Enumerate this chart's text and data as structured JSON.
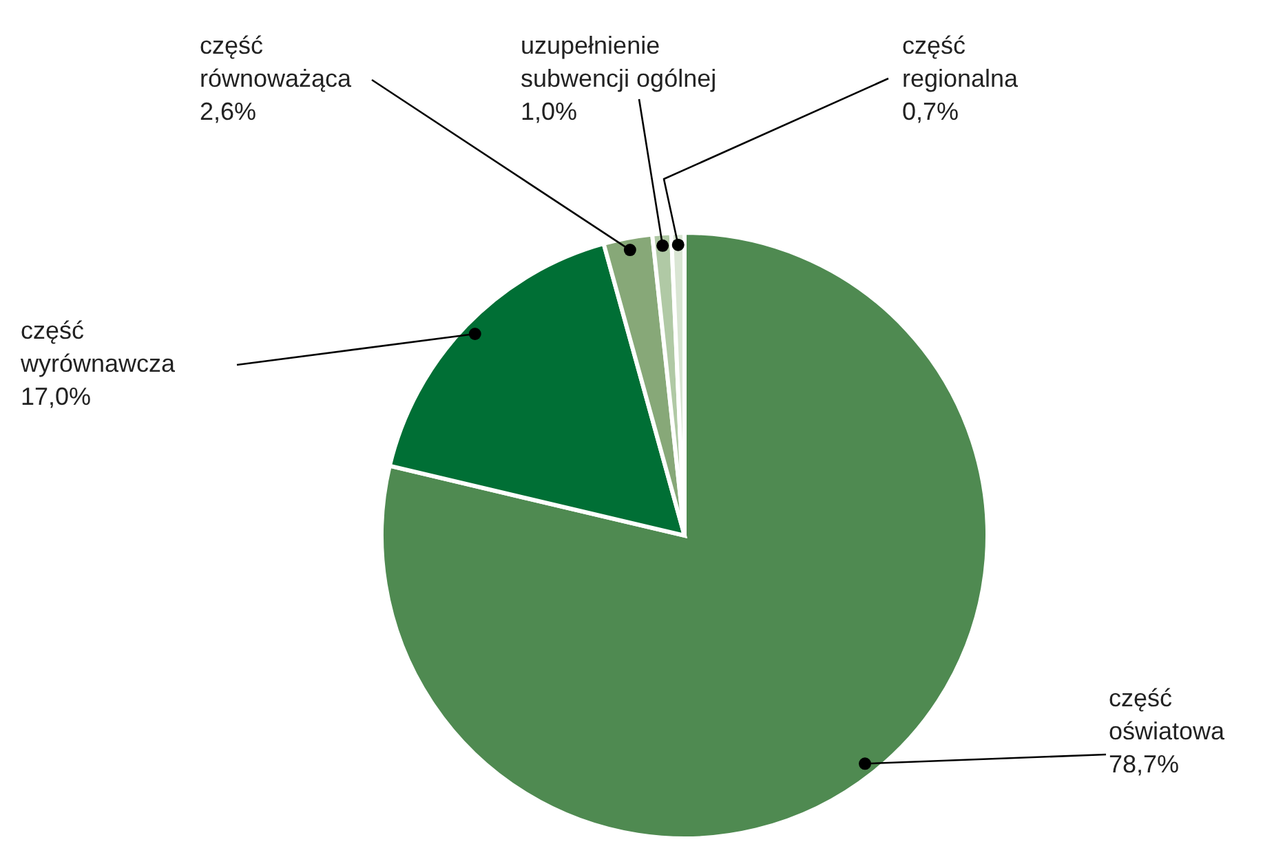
{
  "chart_data": {
    "type": "pie",
    "categories": [
      "część oświatowa",
      "część wyrównawcza",
      "część równoważąca",
      "uzupełnienie subwencji ogólnej",
      "część regionalna"
    ],
    "values": [
      78.7,
      17.0,
      2.6,
      1.0,
      0.7
    ],
    "value_labels": [
      "78,7%",
      "17,0%",
      "2,6%",
      "1,0%",
      "0,7%"
    ],
    "colors": [
      "#4f8a51",
      "#006f35",
      "#87a878",
      "#b0c9a5",
      "#d9e5d3"
    ]
  }
}
